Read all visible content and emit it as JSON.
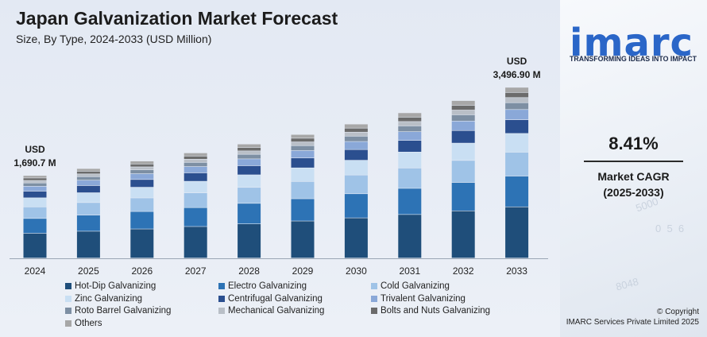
{
  "header": {
    "title": "Japan Galvanization Market Forecast",
    "subtitle": "Size, By Type, 2024-2033 (USD Million)"
  },
  "brand": {
    "logo_text": "imarc",
    "tagline": "TRANSFORMING IDEAS INTO IMPACT"
  },
  "cagr": {
    "value": "8.41%",
    "label_line1": "Market CAGR",
    "label_line2": "(2025-2033)"
  },
  "footer": {
    "copyright_line1": "© Copyright",
    "copyright_line2": "IMARC Services Private Limited 2025"
  },
  "chart_data": {
    "type": "bar",
    "stacked": true,
    "title": "Japan Galvanization Market Forecast",
    "subtitle": "Size, By Type, 2024-2033 (USD Million)",
    "categories": [
      "2024",
      "2025",
      "2026",
      "2027",
      "2028",
      "2029",
      "2030",
      "2031",
      "2032",
      "2033"
    ],
    "totals": [
      1690.7,
      1833,
      1987,
      2154,
      2335,
      2531,
      2744,
      2975,
      3225,
      3496.9
    ],
    "annotations": [
      {
        "category": "2024",
        "line1": "USD",
        "line2": "1,690.7 M"
      },
      {
        "category": "2033",
        "line1": "USD",
        "line2": "3,496.90 M"
      }
    ],
    "series": [
      {
        "name": "Hot-Dip Galvanizing",
        "color": "#1f4e7a",
        "share": 0.3
      },
      {
        "name": "Electro Galvanizing",
        "color": "#2d73b5",
        "share": 0.18
      },
      {
        "name": "Cold Galvanizing",
        "color": "#9fc3e7",
        "share": 0.14
      },
      {
        "name": "Zinc Galvanizing",
        "color": "#c9dff3",
        "share": 0.11
      },
      {
        "name": "Centrifugal Galvanizing",
        "color": "#2b4f8f",
        "share": 0.08
      },
      {
        "name": "Trivalent Galvanizing",
        "color": "#8aa8d8",
        "share": 0.06
      },
      {
        "name": "Roto Barrel Galvanizing",
        "color": "#7d8fa3",
        "share": 0.04
      },
      {
        "name": "Mechanical Galvanizing",
        "color": "#b9bfc7",
        "share": 0.03
      },
      {
        "name": "Bolts and Nuts Galvanizing",
        "color": "#6b6b6b",
        "share": 0.03
      },
      {
        "name": "Others",
        "color": "#a7a7a7",
        "share": 0.03
      }
    ],
    "ylim": [
      0,
      3500
    ],
    "grid": false,
    "legend_position": "bottom"
  }
}
